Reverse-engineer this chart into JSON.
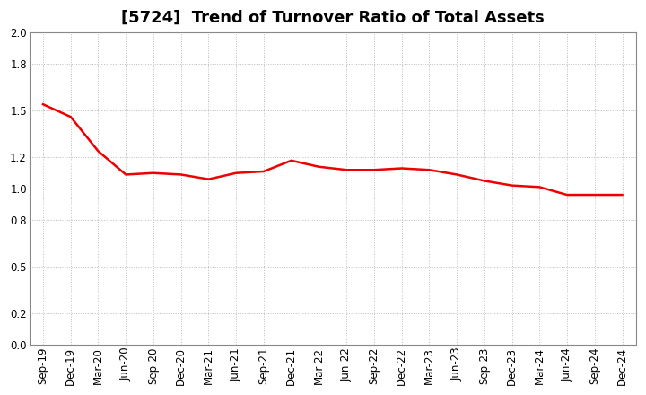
{
  "title": "[5724]  Trend of Turnover Ratio of Total Assets",
  "x_labels": [
    "Sep-19",
    "Dec-19",
    "Mar-20",
    "Jun-20",
    "Sep-20",
    "Dec-20",
    "Mar-21",
    "Jun-21",
    "Sep-21",
    "Dec-21",
    "Mar-22",
    "Jun-22",
    "Sep-22",
    "Dec-22",
    "Mar-23",
    "Jun-23",
    "Sep-23",
    "Dec-23",
    "Mar-24",
    "Jun-24",
    "Sep-24",
    "Dec-24"
  ],
  "values": [
    1.54,
    1.46,
    1.24,
    1.09,
    1.1,
    1.09,
    1.06,
    1.1,
    1.11,
    1.18,
    1.14,
    1.12,
    1.12,
    1.13,
    1.12,
    1.09,
    1.05,
    1.02,
    1.01,
    0.96,
    0.96,
    0.96
  ],
  "line_color": "#ee0000",
  "background_color": "#ffffff",
  "grid_color": "#bbbbbb",
  "ylim": [
    0.0,
    2.0
  ],
  "yticks": [
    0.0,
    0.2,
    0.5,
    0.8,
    1.0,
    1.2,
    1.5,
    1.8,
    2.0
  ],
  "title_fontsize": 13,
  "tick_fontsize": 8.5,
  "line_width": 1.8
}
